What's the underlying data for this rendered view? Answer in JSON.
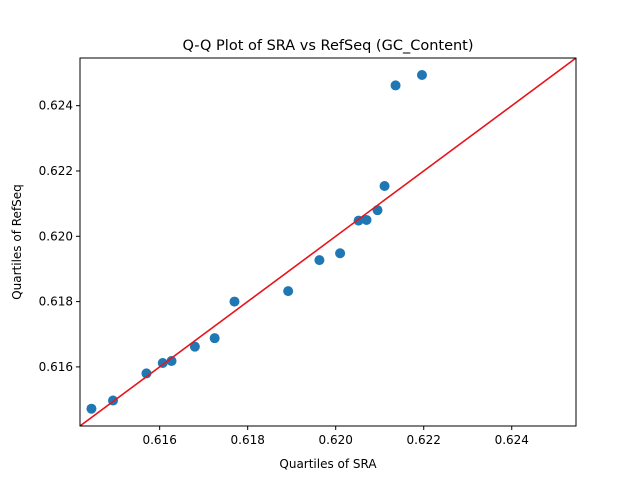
{
  "chart_data": {
    "type": "scatter",
    "title": "Q-Q Plot of SRA vs RefSeq (GC_Content)",
    "xlabel": "Quartiles of SRA",
    "ylabel": "Quartiles of RefSeq",
    "xlim": [
      0.61419,
      0.62546
    ],
    "ylim": [
      0.61419,
      0.62546
    ],
    "xticks": [
      0.616,
      0.618,
      0.62,
      0.622,
      0.624
    ],
    "yticks": [
      0.616,
      0.618,
      0.62,
      0.622,
      0.624
    ],
    "xtick_labels": [
      "0.616",
      "0.618",
      "0.620",
      "0.622",
      "0.624"
    ],
    "ytick_labels": [
      "0.616",
      "0.618",
      "0.620",
      "0.622",
      "0.624"
    ],
    "grid": false,
    "reference_line": {
      "type": "identity",
      "color": "#e8141c"
    },
    "marker_color": "#1f77b4",
    "points": [
      {
        "x": 0.61445,
        "y": 0.61472
      },
      {
        "x": 0.61494,
        "y": 0.61497
      },
      {
        "x": 0.6157,
        "y": 0.6158
      },
      {
        "x": 0.61607,
        "y": 0.61612
      },
      {
        "x": 0.61627,
        "y": 0.61618
      },
      {
        "x": 0.6168,
        "y": 0.61662
      },
      {
        "x": 0.61725,
        "y": 0.61688
      },
      {
        "x": 0.6177,
        "y": 0.618
      },
      {
        "x": 0.61892,
        "y": 0.61832
      },
      {
        "x": 0.61963,
        "y": 0.61927
      },
      {
        "x": 0.6201,
        "y": 0.61948
      },
      {
        "x": 0.62052,
        "y": 0.62048
      },
      {
        "x": 0.6207,
        "y": 0.6205
      },
      {
        "x": 0.62095,
        "y": 0.6208
      },
      {
        "x": 0.62111,
        "y": 0.62154
      },
      {
        "x": 0.62136,
        "y": 0.62462
      },
      {
        "x": 0.62196,
        "y": 0.62494
      }
    ]
  }
}
